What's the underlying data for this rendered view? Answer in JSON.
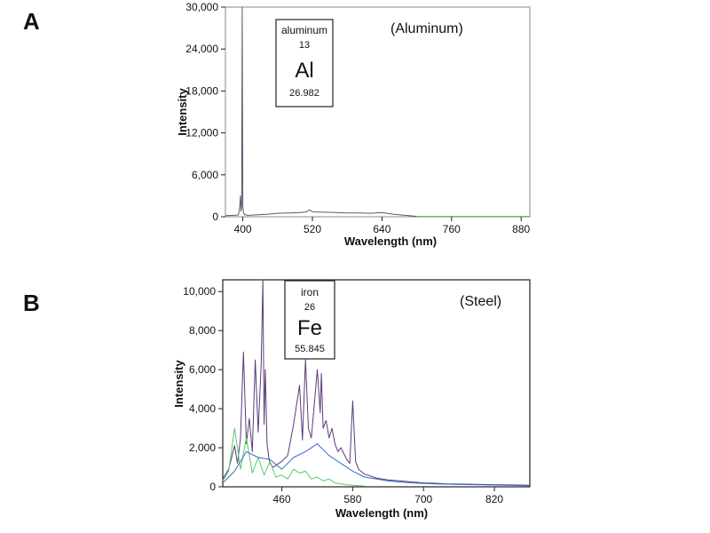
{
  "chart_data": [
    {
      "type": "line",
      "panel_label": "A",
      "annotation": "(Aluminum)",
      "xlabel": "Wavelength (nm)",
      "ylabel": "Intensity",
      "xlim": [
        370,
        895
      ],
      "ylim": [
        0,
        30000
      ],
      "x_ticks": [
        400,
        520,
        640,
        760,
        880
      ],
      "x_tick_labels": [
        "400",
        "520",
        "640",
        "760",
        "880"
      ],
      "y_ticks": [
        0,
        6000,
        12000,
        18000,
        24000,
        30000
      ],
      "y_tick_labels": [
        "0",
        "6,000",
        "12,000",
        "18,000",
        "24,000",
        "30,000"
      ],
      "element": {
        "name": "aluminum",
        "number": "13",
        "symbol": "Al",
        "mass": "26.982"
      },
      "series": [
        {
          "color": "#555a6a",
          "x": [
            370,
            385,
            392,
            394,
            396,
            397,
            398,
            399,
            400,
            401,
            403,
            405,
            410,
            420,
            440,
            460,
            480,
            500,
            510,
            515,
            520,
            540,
            560,
            580,
            600,
            620,
            640,
            660,
            680,
            695,
            700
          ],
          "y": [
            150,
            200,
            250,
            900,
            3000,
            800,
            1500,
            30000,
            1500,
            600,
            300,
            250,
            200,
            250,
            350,
            500,
            550,
            600,
            700,
            1000,
            700,
            650,
            600,
            550,
            550,
            500,
            600,
            350,
            200,
            100,
            50
          ]
        },
        {
          "color": "#33aa44",
          "x": [
            700,
            720,
            740,
            760,
            780,
            800,
            820,
            840,
            860,
            880,
            895
          ],
          "y": [
            40,
            40,
            30,
            30,
            30,
            30,
            30,
            30,
            30,
            30,
            30
          ]
        }
      ]
    },
    {
      "type": "line",
      "panel_label": "B",
      "annotation": "(Steel)",
      "xlabel": "Wavelength (nm)",
      "ylabel": "Intensity",
      "xlim": [
        360,
        880
      ],
      "ylim": [
        0,
        10600
      ],
      "x_ticks": [
        460,
        580,
        700,
        820
      ],
      "x_tick_labels": [
        "460",
        "580",
        "700",
        "820"
      ],
      "y_ticks": [
        0,
        2000,
        4000,
        6000,
        8000,
        10000
      ],
      "y_tick_labels": [
        "0",
        "2,000",
        "4,000",
        "6,000",
        "8,000",
        "10,000"
      ],
      "element": {
        "name": "iron",
        "number": "26",
        "symbol": "Fe",
        "mass": "55.845"
      },
      "series": [
        {
          "color": "#5a3a7a",
          "x": [
            360,
            370,
            375,
            380,
            385,
            390,
            395,
            400,
            405,
            410,
            415,
            420,
            425,
            428,
            430,
            432,
            435,
            438,
            440,
            445,
            450,
            460,
            470,
            480,
            490,
            495,
            500,
            505,
            510,
            515,
            520,
            525,
            527,
            530,
            535,
            540,
            545,
            550,
            555,
            560,
            565,
            570,
            575,
            580,
            585,
            590,
            600,
            620,
            640,
            660,
            680,
            700,
            720,
            740,
            760,
            780,
            800,
            820,
            840,
            860,
            880
          ],
          "y": [
            400,
            900,
            1500,
            2100,
            1200,
            2500,
            6900,
            2200,
            3500,
            1800,
            6500,
            2800,
            6300,
            10600,
            3200,
            6000,
            2200,
            1500,
            1200,
            1000,
            1100,
            1300,
            1600,
            3200,
            5200,
            2400,
            6500,
            3000,
            2500,
            4200,
            6000,
            3800,
            5800,
            3000,
            3400,
            2500,
            3000,
            2200,
            1800,
            2000,
            1700,
            1400,
            1200,
            4400,
            1300,
            900,
            650,
            450,
            350,
            300,
            250,
            200,
            180,
            150,
            140,
            130,
            120,
            110,
            100,
            90,
            80
          ]
        },
        {
          "color": "#55cc66",
          "x": [
            360,
            370,
            380,
            390,
            400,
            410,
            420,
            430,
            440,
            450,
            460,
            470,
            480,
            490,
            500,
            510,
            520,
            530,
            540,
            550,
            560,
            570,
            580,
            590,
            600
          ],
          "y": [
            300,
            800,
            3000,
            900,
            2500,
            700,
            1500,
            600,
            1300,
            500,
            600,
            400,
            900,
            700,
            800,
            400,
            500,
            300,
            400,
            200,
            150,
            100,
            80,
            60,
            40
          ]
        },
        {
          "color": "#3a6ad0",
          "x": [
            360,
            380,
            400,
            420,
            440,
            460,
            480,
            500,
            520,
            540,
            560,
            580,
            600,
            640,
            680,
            720,
            760,
            800,
            840,
            880
          ],
          "y": [
            200,
            800,
            1800,
            1500,
            1400,
            900,
            1500,
            1800,
            2200,
            1600,
            1200,
            800,
            500,
            300,
            200,
            150,
            120,
            100,
            80,
            60
          ]
        }
      ]
    }
  ]
}
